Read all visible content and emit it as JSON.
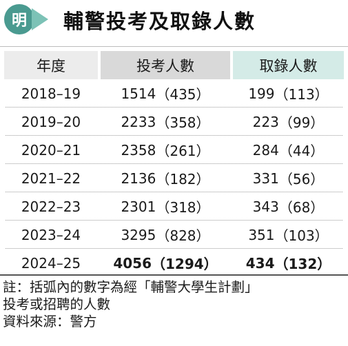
{
  "header": {
    "logo_char": "明",
    "title": "輔警投考及取錄人數"
  },
  "table": {
    "columns": [
      "年度",
      "投考人數",
      "取錄人數"
    ],
    "rows": [
      {
        "year": "2018–19",
        "applied": "1514",
        "applied_scheme": "（435）",
        "admitted": "199",
        "admitted_scheme": "（113）"
      },
      {
        "year": "2019–20",
        "applied": "2233",
        "applied_scheme": "（358）",
        "admitted": "223",
        "admitted_scheme": "（99）"
      },
      {
        "year": "2020–21",
        "applied": "2358",
        "applied_scheme": "（261）",
        "admitted": "284",
        "admitted_scheme": "（44）"
      },
      {
        "year": "2021–22",
        "applied": "2136",
        "applied_scheme": "（182）",
        "admitted": "331",
        "admitted_scheme": "（56）"
      },
      {
        "year": "2022–23",
        "applied": "2301",
        "applied_scheme": "（318）",
        "admitted": "343",
        "admitted_scheme": "（68）"
      },
      {
        "year": "2023–24",
        "applied": "3295",
        "applied_scheme": "（828）",
        "admitted": "351",
        "admitted_scheme": "（103）"
      },
      {
        "year": "2024–25",
        "applied": "4056",
        "applied_scheme": "（1294）",
        "admitted": "434",
        "admitted_scheme": "（132）"
      }
    ]
  },
  "notes": {
    "line1": "註：括弧內的數字為經「輔警大學生計劃」",
    "line2": "投考或招聘的人數",
    "source": "資料來源：警方"
  }
}
